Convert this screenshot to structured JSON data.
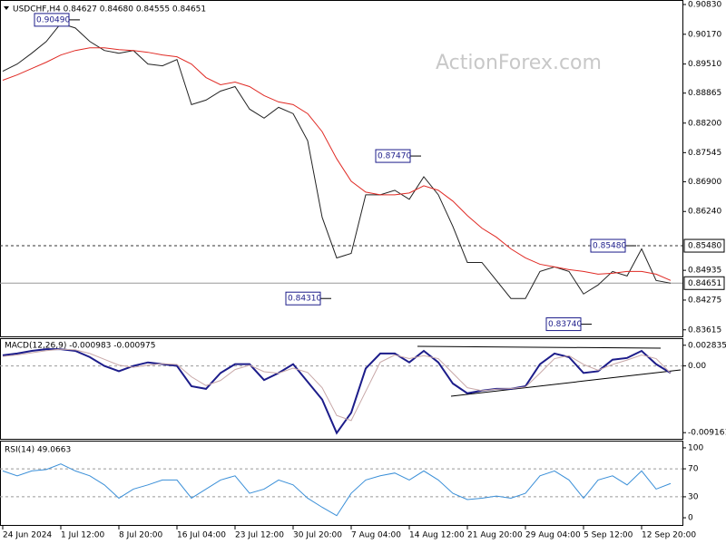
{
  "chart_data": [
    {
      "type": "line",
      "title": "USDCHF,H4  0.84627 0.84680 0.84555 0.84651",
      "watermark": "ActionForex.com",
      "ylim": [
        0.8347,
        0.9091
      ],
      "yticks": [
        {
          "value": 0.9083,
          "label": "0.90830"
        },
        {
          "value": 0.9017,
          "label": "0.90170"
        },
        {
          "value": 0.8951,
          "label": "0.89510"
        },
        {
          "value": 0.88865,
          "label": "0.88865"
        },
        {
          "value": 0.882,
          "label": "0.88200"
        },
        {
          "value": 0.87545,
          "label": "0.87545"
        },
        {
          "value": 0.869,
          "label": "0.86900"
        },
        {
          "value": 0.8624,
          "label": "0.86240"
        },
        {
          "value": 0.84935,
          "label": "0.84935"
        },
        {
          "value": 0.84275,
          "label": "0.84275"
        },
        {
          "value": 0.83615,
          "label": "0.83615"
        }
      ],
      "reference_lines": [
        {
          "value": 0.8548,
          "label": "0.85480"
        },
        {
          "value": 0.84651,
          "label": "0.84651"
        }
      ],
      "annotations": [
        {
          "value": 0.9049,
          "label": "0.90490"
        },
        {
          "value": 0.8431,
          "label": "0.84310"
        },
        {
          "value": 0.8747,
          "label": "0.87470"
        },
        {
          "value": 0.8374,
          "label": "0.83740"
        },
        {
          "value": 0.8548,
          "label": "0.85480"
        }
      ],
      "series": [
        {
          "color": "#222222",
          "values": [
            0.8935,
            0.8951,
            0.8975,
            0.9001,
            0.9041,
            0.9031,
            0.9001,
            0.8981,
            0.8975,
            0.8981,
            0.8951,
            0.8947,
            0.8961,
            0.8861,
            0.8871,
            0.8891,
            0.8901,
            0.8851,
            0.8831,
            0.8855,
            0.8841,
            0.8781,
            0.8611,
            0.8521,
            0.8531,
            0.8661,
            0.8661,
            0.8671,
            0.8651,
            0.8701,
            0.8661,
            0.8591,
            0.8511,
            0.8511,
            0.8471,
            0.8431,
            0.8431,
            0.8491,
            0.8501,
            0.8491,
            0.8441,
            0.8461,
            0.8491,
            0.8481,
            0.8541,
            0.8471,
            0.8465
          ]
        },
        {
          "color": "#e02a24",
          "values": [
            0.8915,
            0.8927,
            0.8941,
            0.8955,
            0.8971,
            0.8981,
            0.8987,
            0.8987,
            0.8983,
            0.8981,
            0.8977,
            0.8971,
            0.8967,
            0.8951,
            0.8921,
            0.8905,
            0.8911,
            0.8901,
            0.8881,
            0.8867,
            0.8861,
            0.8841,
            0.8801,
            0.8741,
            0.8691,
            0.8667,
            0.8661,
            0.8661,
            0.8665,
            0.8681,
            0.8671,
            0.8647,
            0.8615,
            0.8587,
            0.8567,
            0.8541,
            0.8521,
            0.8507,
            0.8501,
            0.8495,
            0.8491,
            0.8485,
            0.8487,
            0.8491,
            0.8491,
            0.8485,
            0.8471
          ]
        }
      ]
    },
    {
      "type": "line",
      "title": "MACD(12,26,9) -0.000983 -0.000975",
      "ylim": [
        -0.01001,
        0.00368
      ],
      "yticks": [
        0.002835,
        {
          "value": 0,
          "label": "0.00"
        },
        -0.009161
      ],
      "series": [
        {
          "color": "#1c1c8a",
          "values": [
            0.00145,
            0.0017,
            0.00206,
            0.0023,
            0.0023,
            0.00206,
            0.00121,
            0,
            -0.00073,
            0,
            0.00048,
            0.00024,
            0,
            -0.00279,
            -0.00315,
            -0.00097,
            0.00024,
            0.00024,
            -0.00194,
            -0.00097,
            0.00024,
            -0.00218,
            -0.00461,
            -0.00921,
            -0.00642,
            -0.00036,
            0.0017,
            0.0017,
            0.00048,
            0.00206,
            0.00048,
            -0.00242,
            -0.00376,
            -0.00339,
            -0.00315,
            -0.00315,
            -0.00279,
            0.00024,
            0.0017,
            0.00121,
            -0.00097,
            -0.00073,
            0.00085,
            0.00109,
            0.00206,
            0.00024,
            -0.00098
          ]
        },
        {
          "color": "#c8a8a8",
          "values": [
            0.0013,
            0.0015,
            0.0018,
            0.0021,
            0.0023,
            0.0022,
            0.0017,
            0.0009,
            0.0001,
            -0.0002,
            0.0001,
            0.0003,
            0.0002,
            -0.0015,
            -0.0027,
            -0.002,
            -0.0005,
            0.0001,
            -0.0008,
            -0.001,
            -0.0003,
            -0.0009,
            -0.003,
            -0.0068,
            -0.0075,
            -0.0035,
            0.0005,
            0.0015,
            0.001,
            0.0014,
            0.001,
            -0.001,
            -0.003,
            -0.0034,
            -0.0032,
            -0.0031,
            -0.0029,
            -0.001,
            0.001,
            0.0014,
            0.0002,
            -0.0006,
            0.0002,
            0.0008,
            0.0015,
            0.001,
            -0.001
          ]
        }
      ]
    },
    {
      "type": "line",
      "title": "RSI(14) 49.0663",
      "ylim": [
        -10.3,
        109
      ],
      "yticks": [
        100,
        70,
        30,
        0
      ],
      "grid_levels": [
        70,
        30
      ],
      "categories": [
        "24 Jun 2024",
        null,
        null,
        null,
        "1 Jul 12:00",
        null,
        null,
        null,
        "8 Jul 20:00",
        null,
        null,
        null,
        "16 Jul 04:00",
        null,
        null,
        null,
        "23 Jul 12:00",
        null,
        null,
        null,
        "30 Jul 20:00",
        null,
        null,
        null,
        "7 Aug 04:00",
        null,
        null,
        null,
        "14 Aug 12:00",
        null,
        null,
        null,
        "21 Aug 20:00",
        null,
        null,
        null,
        "29 Aug 04:00",
        null,
        null,
        null,
        "5 Sep 12:00",
        null,
        null,
        null,
        "12 Sep 20:00",
        null,
        null
      ],
      "series": [
        {
          "color": "#3a8fd8",
          "values": [
            67,
            60,
            67,
            69,
            77,
            67,
            60,
            47,
            28,
            41,
            47,
            54,
            54,
            28,
            41,
            54,
            60,
            35,
            41,
            54,
            47,
            28,
            15,
            3,
            35,
            54,
            60,
            64,
            54,
            67,
            54,
            35,
            26,
            28,
            31,
            28,
            35,
            60,
            67,
            54,
            28,
            54,
            60,
            47,
            67,
            41,
            49
          ]
        }
      ]
    }
  ]
}
